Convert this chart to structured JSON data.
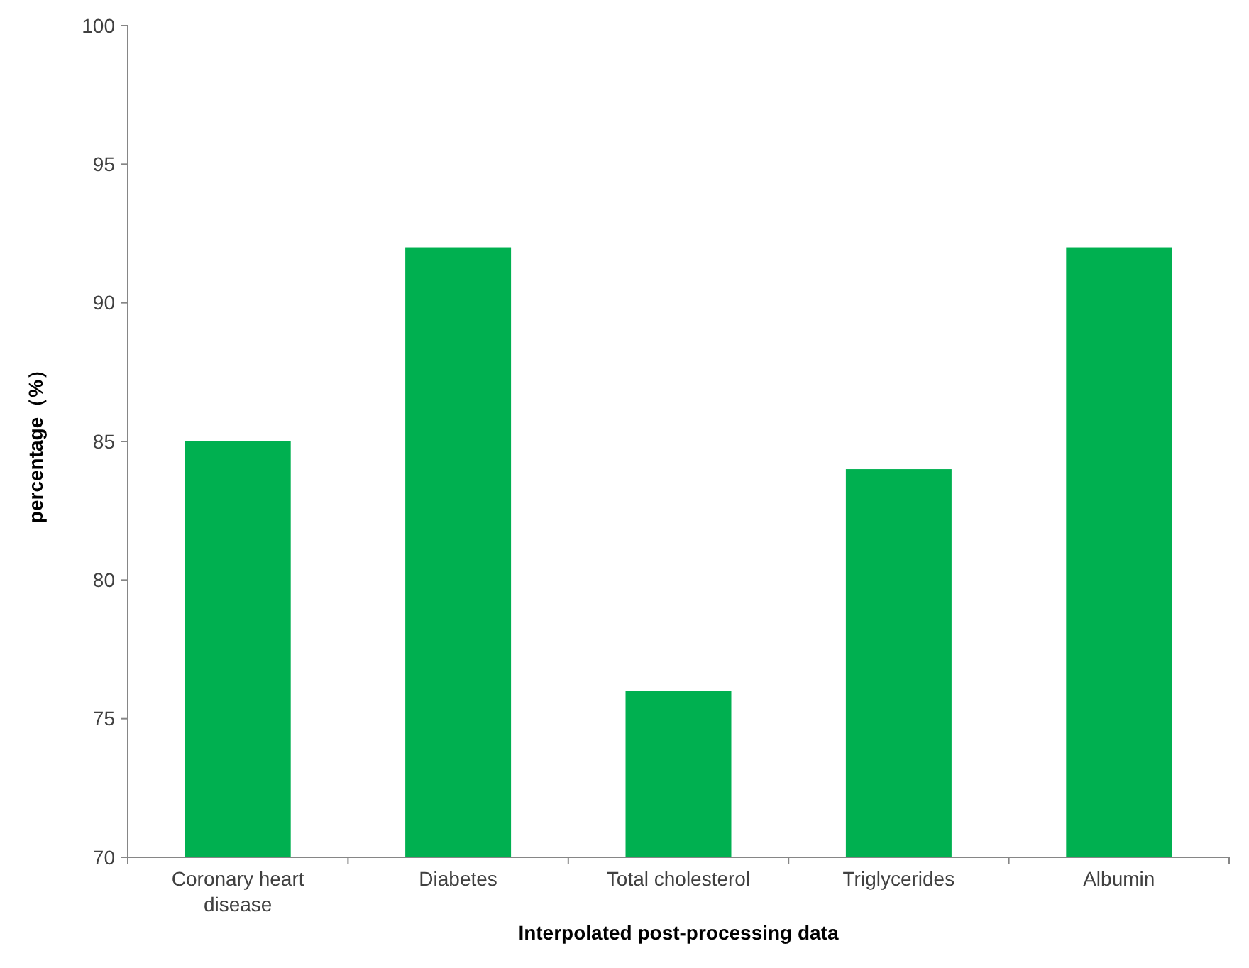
{
  "chart_data": {
    "type": "bar",
    "xlabel": "Interpolated post-processing data",
    "ylabel": "percentage（%）",
    "categories": [
      "Coronary heart disease",
      "Diabetes",
      "Total cholesterol",
      "Triglycerides",
      "Albumin"
    ],
    "values": [
      85,
      92,
      76,
      84,
      92
    ],
    "color": "#00b050",
    "ylim": [
      70,
      100
    ],
    "yticks": [
      70,
      75,
      80,
      85,
      90,
      95,
      100
    ],
    "grid": false
  }
}
